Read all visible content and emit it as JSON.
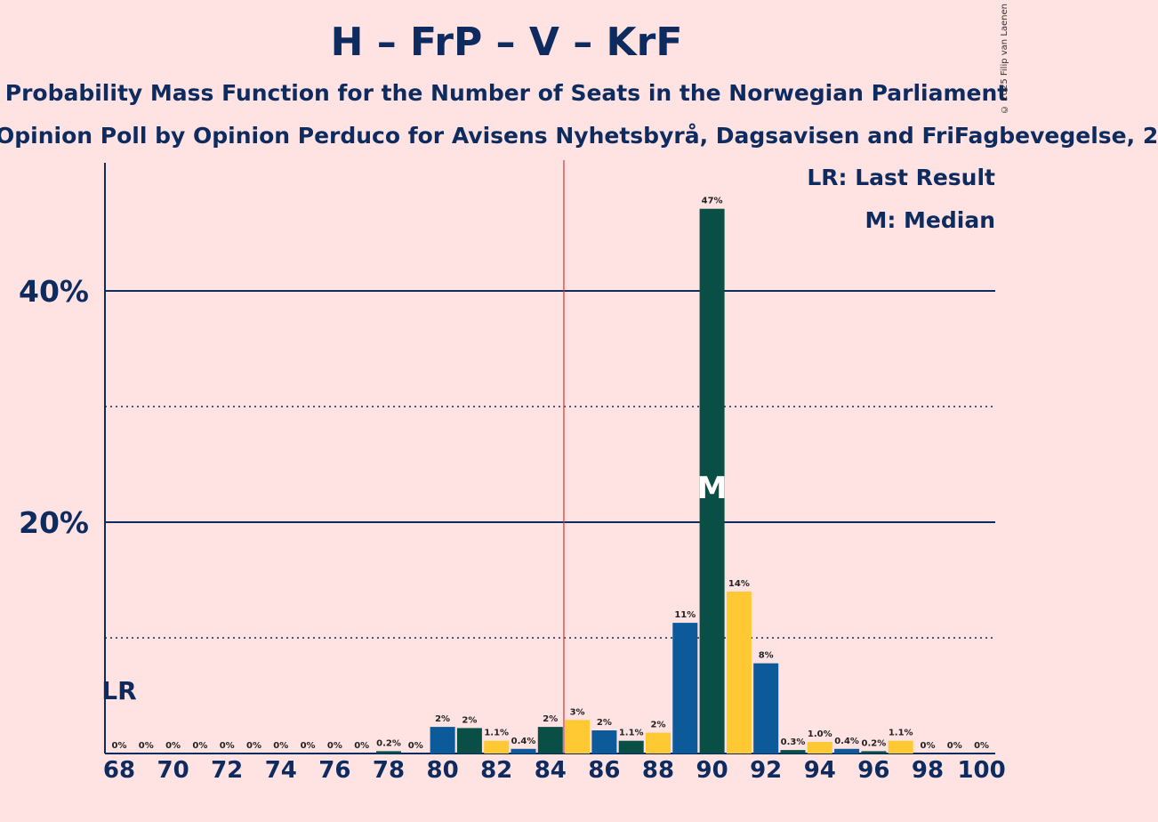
{
  "title": "H – FrP – V – KrF",
  "subtitle": "Probability Mass Function for the Number of Seats in the Norwegian Parliament",
  "subtitle2": "Opinion Poll by Opinion Perduco for Avisens Nyhetsbyrå, Dagsavisen and FriFagbevegelse, 2",
  "copyright": "© 2025 Filip van Laenen",
  "legend": {
    "lr": "LR: Last Result",
    "median": "M: Median"
  },
  "markers": {
    "lr_label": "LR",
    "median_label": "M"
  },
  "colors": {
    "background": "#ffe2e2",
    "blue": "#0d5a9a",
    "green": "#0a4f45",
    "yellow": "#ffc933",
    "axis": "#0d2b5e",
    "majority_line": "#e53030"
  },
  "chart_data": {
    "type": "bar",
    "x": [
      68,
      69,
      70,
      71,
      72,
      73,
      74,
      75,
      76,
      77,
      78,
      79,
      80,
      81,
      82,
      83,
      84,
      85,
      86,
      87,
      88,
      89,
      90,
      91,
      92,
      93,
      94,
      95,
      96,
      97,
      98,
      99,
      100
    ],
    "values": [
      0,
      0,
      0,
      0,
      0,
      0,
      0,
      0,
      0,
      0,
      0.2,
      0,
      2.3,
      2.2,
      1.1,
      0.4,
      2.3,
      2.9,
      2.0,
      1.1,
      1.8,
      11.3,
      47.1,
      14.0,
      7.8,
      0.3,
      1.0,
      0.4,
      0.2,
      1.1,
      0,
      0,
      0
    ],
    "labels": [
      "0%",
      "0%",
      "0%",
      "0%",
      "0%",
      "0%",
      "0%",
      "0%",
      "0%",
      "0%",
      "0.2%",
      "0%",
      "2%",
      "2%",
      "1.1%",
      "0.4%",
      "2%",
      "3%",
      "2%",
      "1.1%",
      "2%",
      "11%",
      "47%",
      "14%",
      "8%",
      "0.3%",
      "1.0%",
      "0.4%",
      "0.2%",
      "1.1%",
      "0%",
      "0%",
      "0%"
    ],
    "x_tick_labels": [
      "68",
      "70",
      "72",
      "74",
      "76",
      "78",
      "80",
      "82",
      "84",
      "86",
      "88",
      "90",
      "92",
      "94",
      "96",
      "98",
      "100"
    ],
    "y_tick_labels": [
      "20%",
      "40%"
    ],
    "ylim": [
      0,
      51
    ],
    "y_major_gridlines": [
      20,
      40
    ],
    "y_minor_gridlines": [
      10,
      30
    ],
    "last_result_seat": 68,
    "median_seat": 90,
    "majority_after_seat": 84
  }
}
